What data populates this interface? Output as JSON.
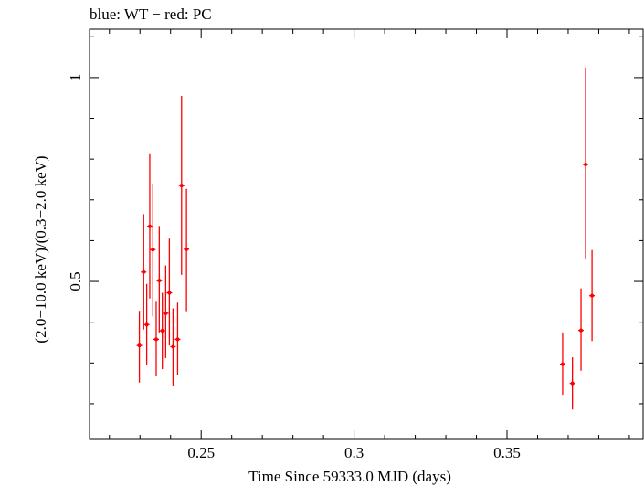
{
  "chart_data": {
    "type": "scatter",
    "title": "blue: WT − red: PC",
    "xlabel": "Time Since 59333.0 MJD (days)",
    "ylabel": "(2.0−10.0 keV)/(0.3−2.0 keV)",
    "xlim": [
      0.2135,
      0.3945
    ],
    "ylim": [
      0.1125,
      1.1185
    ],
    "xticks": [
      0.25,
      0.3,
      0.35
    ],
    "xtick_labels": [
      "0.25",
      "0.3",
      "0.35"
    ],
    "yticks": [
      0.5,
      1.0
    ],
    "ytick_labels": [
      "0.5",
      "1"
    ],
    "series": [
      {
        "name": "PC",
        "color": "#ff0000",
        "points": [
          {
            "x": 0.2298,
            "y": 0.343,
            "ylo": 0.252,
            "yhi": 0.428
          },
          {
            "x": 0.2312,
            "y": 0.523,
            "ylo": 0.382,
            "yhi": 0.665
          },
          {
            "x": 0.2322,
            "y": 0.394,
            "ylo": 0.294,
            "yhi": 0.494
          },
          {
            "x": 0.2332,
            "y": 0.635,
            "ylo": 0.458,
            "yhi": 0.812
          },
          {
            "x": 0.2342,
            "y": 0.578,
            "ylo": 0.414,
            "yhi": 0.74
          },
          {
            "x": 0.2353,
            "y": 0.358,
            "ylo": 0.267,
            "yhi": 0.45
          },
          {
            "x": 0.2363,
            "y": 0.502,
            "ylo": 0.375,
            "yhi": 0.636
          },
          {
            "x": 0.2373,
            "y": 0.379,
            "ylo": 0.285,
            "yhi": 0.472
          },
          {
            "x": 0.2384,
            "y": 0.422,
            "ylo": 0.312,
            "yhi": 0.539
          },
          {
            "x": 0.2396,
            "y": 0.472,
            "ylo": 0.343,
            "yhi": 0.605
          },
          {
            "x": 0.2408,
            "y": 0.34,
            "ylo": 0.244,
            "yhi": 0.434
          },
          {
            "x": 0.2423,
            "y": 0.358,
            "ylo": 0.27,
            "yhi": 0.448
          },
          {
            "x": 0.2436,
            "y": 0.735,
            "ylo": 0.516,
            "yhi": 0.955
          },
          {
            "x": 0.2452,
            "y": 0.579,
            "ylo": 0.427,
            "yhi": 0.727
          },
          {
            "x": 0.3682,
            "y": 0.297,
            "ylo": 0.222,
            "yhi": 0.375
          },
          {
            "x": 0.3714,
            "y": 0.25,
            "ylo": 0.186,
            "yhi": 0.314
          },
          {
            "x": 0.3742,
            "y": 0.38,
            "ylo": 0.281,
            "yhi": 0.483
          },
          {
            "x": 0.3757,
            "y": 0.787,
            "ylo": 0.555,
            "yhi": 1.025
          },
          {
            "x": 0.3778,
            "y": 0.465,
            "ylo": 0.354,
            "yhi": 0.577
          }
        ]
      }
    ]
  }
}
